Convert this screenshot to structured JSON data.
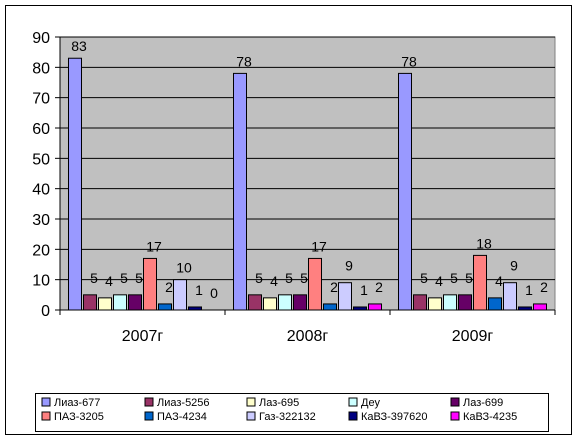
{
  "chart_data": {
    "type": "bar",
    "categories": [
      "2007г",
      "2008г",
      "2009г"
    ],
    "ylim": [
      0,
      90
    ],
    "yticks": [
      0,
      10,
      20,
      30,
      40,
      50,
      60,
      70,
      80,
      90
    ],
    "grid": true,
    "legend_position": "bottom",
    "title": "",
    "xlabel": "",
    "ylabel": "",
    "series": [
      {
        "name": "Лиаз-677",
        "color": "#9999ff",
        "values": [
          83,
          78,
          78
        ]
      },
      {
        "name": "Лиаз-5256",
        "color": "#993366",
        "values": [
          5,
          5,
          5
        ]
      },
      {
        "name": "Лаз-695",
        "color": "#ffffcc",
        "values": [
          4,
          4,
          4
        ]
      },
      {
        "name": "Деу",
        "color": "#ccffff",
        "values": [
          5,
          5,
          5
        ]
      },
      {
        "name": "Лаз-699",
        "color": "#660066",
        "values": [
          5,
          5,
          5
        ]
      },
      {
        "name": "ПАЗ-3205",
        "color": "#ff8080",
        "values": [
          17,
          17,
          18
        ]
      },
      {
        "name": "ПАЗ-4234",
        "color": "#0066cc",
        "values": [
          2,
          2,
          4
        ]
      },
      {
        "name": "Газ-322132",
        "color": "#ccccff",
        "values": [
          10,
          9,
          9
        ]
      },
      {
        "name": "КаВЗ-397620",
        "color": "#000080",
        "values": [
          1,
          1,
          1
        ]
      },
      {
        "name": "КаВЗ-4235",
        "color": "#ff00ff",
        "values": [
          0,
          2,
          2
        ]
      }
    ]
  }
}
